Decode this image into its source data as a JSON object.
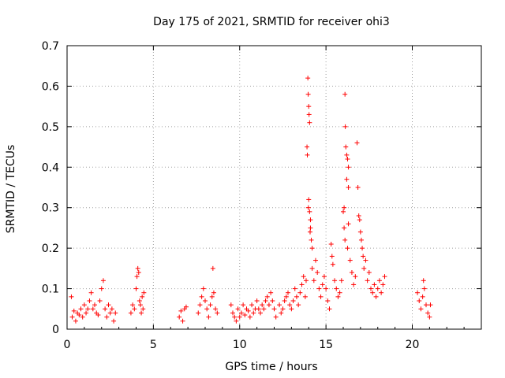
{
  "chart_data": {
    "type": "scatter",
    "title": "Day 175 of 2021, SRMTID for receiver ohi3",
    "xlabel": "GPS time / hours",
    "ylabel": "SRMTID / TECUs",
    "xlim": [
      0,
      24
    ],
    "ylim": [
      0,
      0.7
    ],
    "x_ticks": [
      0,
      5,
      10,
      15,
      20
    ],
    "x_tick_labels": [
      "0",
      "5",
      "10",
      "15",
      "20"
    ],
    "y_ticks": [
      0,
      0.1,
      0.2,
      0.3,
      0.4,
      0.5,
      0.6,
      0.7
    ],
    "y_tick_labels": [
      "0",
      "0.1",
      "0.2",
      "0.3",
      "0.4",
      "0.5",
      "0.6",
      "0.7"
    ],
    "grid": true,
    "marker_color": "#ff0000",
    "series": [
      {
        "name": "SRMTID",
        "marker": "plus",
        "points": [
          [
            0.25,
            0.08
          ],
          [
            0.3,
            0.03
          ],
          [
            0.4,
            0.045
          ],
          [
            0.5,
            0.02
          ],
          [
            0.6,
            0.04
          ],
          [
            0.7,
            0.035
          ],
          [
            0.8,
            0.05
          ],
          [
            0.9,
            0.03
          ],
          [
            1.0,
            0.06
          ],
          [
            1.1,
            0.04
          ],
          [
            1.2,
            0.05
          ],
          [
            1.3,
            0.07
          ],
          [
            1.4,
            0.09
          ],
          [
            1.5,
            0.05
          ],
          [
            1.6,
            0.06
          ],
          [
            1.7,
            0.04
          ],
          [
            1.8,
            0.035
          ],
          [
            1.9,
            0.07
          ],
          [
            2.0,
            0.1
          ],
          [
            2.1,
            0.12
          ],
          [
            2.2,
            0.05
          ],
          [
            2.3,
            0.03
          ],
          [
            2.4,
            0.06
          ],
          [
            2.5,
            0.04
          ],
          [
            2.6,
            0.05
          ],
          [
            2.7,
            0.02
          ],
          [
            2.8,
            0.04
          ],
          [
            3.7,
            0.04
          ],
          [
            3.8,
            0.06
          ],
          [
            3.9,
            0.05
          ],
          [
            4.0,
            0.1
          ],
          [
            4.05,
            0.13
          ],
          [
            4.1,
            0.15
          ],
          [
            4.15,
            0.14
          ],
          [
            4.2,
            0.07
          ],
          [
            4.25,
            0.06
          ],
          [
            4.3,
            0.04
          ],
          [
            4.35,
            0.08
          ],
          [
            4.4,
            0.05
          ],
          [
            4.45,
            0.09
          ],
          [
            6.5,
            0.03
          ],
          [
            6.6,
            0.045
          ],
          [
            6.7,
            0.02
          ],
          [
            6.8,
            0.05
          ],
          [
            6.9,
            0.055
          ],
          [
            7.6,
            0.04
          ],
          [
            7.7,
            0.06
          ],
          [
            7.8,
            0.08
          ],
          [
            7.9,
            0.1
          ],
          [
            8.0,
            0.07
          ],
          [
            8.1,
            0.05
          ],
          [
            8.2,
            0.03
          ],
          [
            8.3,
            0.06
          ],
          [
            8.4,
            0.08
          ],
          [
            8.45,
            0.15
          ],
          [
            8.5,
            0.09
          ],
          [
            8.6,
            0.05
          ],
          [
            8.7,
            0.04
          ],
          [
            9.5,
            0.06
          ],
          [
            9.6,
            0.04
          ],
          [
            9.7,
            0.03
          ],
          [
            9.8,
            0.02
          ],
          [
            9.9,
            0.05
          ],
          [
            10.0,
            0.03
          ],
          [
            10.1,
            0.04
          ],
          [
            10.2,
            0.06
          ],
          [
            10.3,
            0.035
          ],
          [
            10.4,
            0.05
          ],
          [
            10.5,
            0.045
          ],
          [
            10.6,
            0.03
          ],
          [
            10.7,
            0.06
          ],
          [
            10.8,
            0.04
          ],
          [
            10.9,
            0.05
          ],
          [
            11.0,
            0.07
          ],
          [
            11.1,
            0.05
          ],
          [
            11.2,
            0.04
          ],
          [
            11.3,
            0.06
          ],
          [
            11.4,
            0.05
          ],
          [
            11.5,
            0.07
          ],
          [
            11.6,
            0.08
          ],
          [
            11.7,
            0.06
          ],
          [
            11.8,
            0.09
          ],
          [
            11.9,
            0.07
          ],
          [
            12.0,
            0.05
          ],
          [
            12.1,
            0.03
          ],
          [
            12.3,
            0.06
          ],
          [
            12.4,
            0.04
          ],
          [
            12.5,
            0.05
          ],
          [
            12.6,
            0.07
          ],
          [
            12.7,
            0.08
          ],
          [
            12.8,
            0.09
          ],
          [
            12.9,
            0.06
          ],
          [
            13.0,
            0.05
          ],
          [
            13.1,
            0.07
          ],
          [
            13.2,
            0.1
          ],
          [
            13.3,
            0.08
          ],
          [
            13.4,
            0.06
          ],
          [
            13.5,
            0.09
          ],
          [
            13.6,
            0.11
          ],
          [
            13.7,
            0.13
          ],
          [
            13.8,
            0.08
          ],
          [
            13.85,
            0.12
          ],
          [
            13.9,
            0.45
          ],
          [
            13.92,
            0.43
          ],
          [
            13.95,
            0.62
          ],
          [
            13.97,
            0.58
          ],
          [
            14.0,
            0.55
          ],
          [
            14.02,
            0.53
          ],
          [
            14.05,
            0.51
          ],
          [
            14.0,
            0.32
          ],
          [
            14.05,
            0.29
          ],
          [
            14.1,
            0.27
          ],
          [
            14.1,
            0.25
          ],
          [
            14.15,
            0.22
          ],
          [
            14.2,
            0.2
          ],
          [
            13.98,
            0.3
          ],
          [
            14.08,
            0.24
          ],
          [
            14.2,
            0.15
          ],
          [
            14.3,
            0.12
          ],
          [
            14.4,
            0.17
          ],
          [
            14.5,
            0.14
          ],
          [
            14.6,
            0.1
          ],
          [
            14.7,
            0.08
          ],
          [
            14.8,
            0.11
          ],
          [
            14.9,
            0.13
          ],
          [
            15.0,
            0.1
          ],
          [
            15.1,
            0.07
          ],
          [
            15.2,
            0.05
          ],
          [
            15.3,
            0.21
          ],
          [
            15.35,
            0.18
          ],
          [
            15.4,
            0.16
          ],
          [
            15.5,
            0.12
          ],
          [
            15.6,
            0.1
          ],
          [
            15.7,
            0.08
          ],
          [
            15.8,
            0.09
          ],
          [
            15.9,
            0.12
          ],
          [
            16.0,
            0.29
          ],
          [
            16.05,
            0.3
          ],
          [
            16.1,
            0.58
          ],
          [
            16.12,
            0.5
          ],
          [
            16.15,
            0.45
          ],
          [
            16.2,
            0.43
          ],
          [
            16.25,
            0.42
          ],
          [
            16.3,
            0.35
          ],
          [
            16.3,
            0.4
          ],
          [
            16.05,
            0.25
          ],
          [
            16.1,
            0.22
          ],
          [
            16.2,
            0.37
          ],
          [
            16.25,
            0.2
          ],
          [
            16.3,
            0.26
          ],
          [
            16.4,
            0.17
          ],
          [
            16.5,
            0.14
          ],
          [
            16.6,
            0.11
          ],
          [
            16.7,
            0.13
          ],
          [
            16.8,
            0.46
          ],
          [
            16.85,
            0.35
          ],
          [
            16.9,
            0.28
          ],
          [
            16.95,
            0.27
          ],
          [
            17.0,
            0.24
          ],
          [
            17.05,
            0.22
          ],
          [
            17.1,
            0.2
          ],
          [
            17.15,
            0.18
          ],
          [
            17.2,
            0.15
          ],
          [
            17.3,
            0.17
          ],
          [
            17.4,
            0.12
          ],
          [
            17.5,
            0.14
          ],
          [
            17.6,
            0.1
          ],
          [
            17.7,
            0.09
          ],
          [
            17.8,
            0.11
          ],
          [
            17.9,
            0.08
          ],
          [
            18.0,
            0.1
          ],
          [
            18.1,
            0.12
          ],
          [
            18.2,
            0.09
          ],
          [
            18.3,
            0.11
          ],
          [
            18.4,
            0.13
          ],
          [
            20.3,
            0.09
          ],
          [
            20.4,
            0.07
          ],
          [
            20.5,
            0.05
          ],
          [
            20.6,
            0.08
          ],
          [
            20.65,
            0.12
          ],
          [
            20.7,
            0.1
          ],
          [
            20.8,
            0.06
          ],
          [
            20.9,
            0.04
          ],
          [
            21.0,
            0.03
          ],
          [
            21.05,
            0.06
          ]
        ]
      }
    ]
  }
}
